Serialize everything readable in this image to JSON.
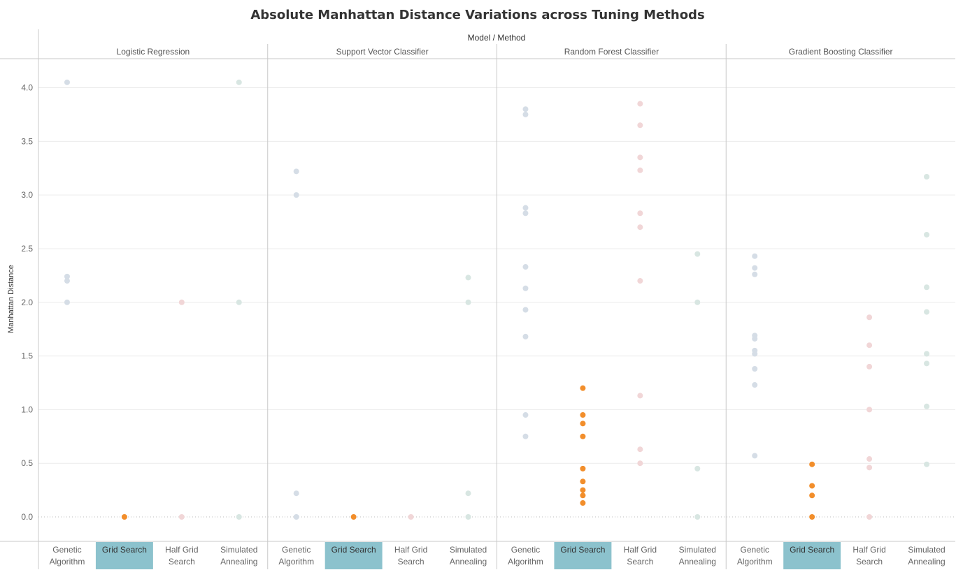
{
  "chart_data": {
    "type": "scatter",
    "title": "Absolute Manhattan Distance Variations across Tuning Methods",
    "column_header": "Model  /  Method",
    "ylabel": "Manhattan Distance",
    "ylim": [
      -0.2,
      4.3
    ],
    "yticks": [
      "0.0",
      "0.5",
      "1.0",
      "1.5",
      "2.0",
      "2.5",
      "3.0",
      "3.5",
      "4.0"
    ],
    "highlighted_method": "Grid Search",
    "grid": true,
    "zero_line": "dotted",
    "colors": {
      "Genetic Algorithm": "#d5dde6",
      "Grid Search": "#f28e2b",
      "Half Grid Search": "#f1d6d7",
      "Simulated Annealing": "#d8e6e2",
      "highlight_bg": "#8cc2cd"
    },
    "methods": [
      {
        "name": "Genetic Algorithm",
        "line1": "Genetic",
        "line2": "Algorithm"
      },
      {
        "name": "Grid Search",
        "line1": "Grid Search",
        "line2": ""
      },
      {
        "name": "Half Grid Search",
        "line1": "Half Grid",
        "line2": "Search"
      },
      {
        "name": "Simulated Annealing",
        "line1": "Simulated",
        "line2": "Annealing"
      }
    ],
    "models": [
      {
        "name": "Logistic Regression",
        "values": {
          "Genetic Algorithm": [
            4.05,
            2.24,
            2.2,
            2.0
          ],
          "Grid Search": [
            0.0
          ],
          "Half Grid Search": [
            2.0,
            0.0
          ],
          "Simulated Annealing": [
            4.05,
            2.0,
            0.0
          ]
        }
      },
      {
        "name": "Support Vector Classifier",
        "values": {
          "Genetic Algorithm": [
            3.22,
            3.0,
            0.22,
            0.0
          ],
          "Grid Search": [
            0.0
          ],
          "Half Grid Search": [
            0.0
          ],
          "Simulated Annealing": [
            2.23,
            2.0,
            0.22,
            0.0
          ]
        }
      },
      {
        "name": "Random Forest Classifier",
        "values": {
          "Genetic Algorithm": [
            3.8,
            3.75,
            2.88,
            2.83,
            2.33,
            2.13,
            1.93,
            1.68,
            0.95,
            0.75
          ],
          "Grid Search": [
            1.2,
            0.95,
            0.87,
            0.75,
            0.45,
            0.33,
            0.25,
            0.2,
            0.13
          ],
          "Half Grid Search": [
            3.85,
            3.65,
            3.35,
            3.23,
            2.83,
            2.7,
            2.2,
            1.13,
            0.63,
            0.5
          ],
          "Simulated Annealing": [
            2.45,
            2.0,
            0.45,
            0.0
          ]
        }
      },
      {
        "name": "Gradient Boosting Classifier",
        "values": {
          "Genetic Algorithm": [
            2.43,
            2.32,
            2.26,
            1.69,
            1.66,
            1.55,
            1.52,
            1.38,
            1.23,
            0.57
          ],
          "Grid Search": [
            0.49,
            0.29,
            0.2,
            0.0
          ],
          "Half Grid Search": [
            1.86,
            1.6,
            1.4,
            1.0,
            0.54,
            0.46,
            0.0
          ],
          "Simulated Annealing": [
            3.17,
            2.63,
            2.14,
            1.91,
            1.52,
            1.43,
            1.03,
            0.49
          ]
        }
      }
    ]
  }
}
